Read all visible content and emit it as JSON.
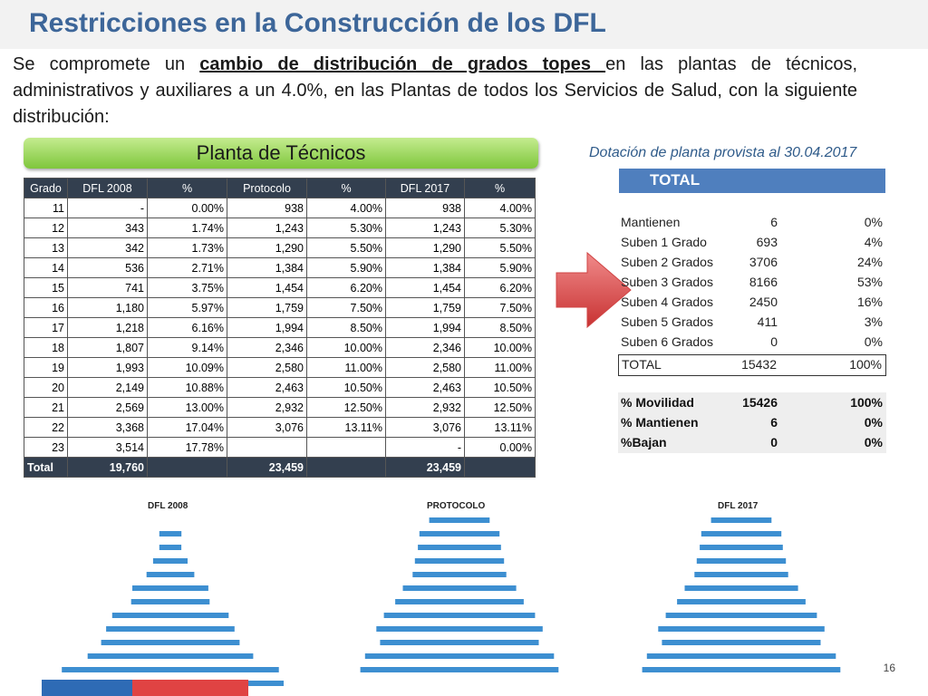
{
  "title": "Restricciones en la Construcción de los DFL",
  "intro": {
    "part1": "Se compromete un ",
    "highlight": "cambio de distribución de grados topes ",
    "part2": "en las plantas de técnicos, administrativos y auxiliares a un 4.0%, en las Plantas de todos los Servicios de Salud, con la siguiente distribución:"
  },
  "planta_label": "Planta de Técnicos",
  "table": {
    "headers": [
      "Grado",
      "DFL 2008",
      "%",
      "Protocolo",
      "%",
      "DFL 2017",
      "%"
    ],
    "rows": [
      [
        "11",
        "-",
        "0.00%",
        "938",
        "4.00%",
        "938",
        "4.00%"
      ],
      [
        "12",
        "343",
        "1.74%",
        "1,243",
        "5.30%",
        "1,243",
        "5.30%"
      ],
      [
        "13",
        "342",
        "1.73%",
        "1,290",
        "5.50%",
        "1,290",
        "5.50%"
      ],
      [
        "14",
        "536",
        "2.71%",
        "1,384",
        "5.90%",
        "1,384",
        "5.90%"
      ],
      [
        "15",
        "741",
        "3.75%",
        "1,454",
        "6.20%",
        "1,454",
        "6.20%"
      ],
      [
        "16",
        "1,180",
        "5.97%",
        "1,759",
        "7.50%",
        "1,759",
        "7.50%"
      ],
      [
        "17",
        "1,218",
        "6.16%",
        "1,994",
        "8.50%",
        "1,994",
        "8.50%"
      ],
      [
        "18",
        "1,807",
        "9.14%",
        "2,346",
        "10.00%",
        "2,346",
        "10.00%"
      ],
      [
        "19",
        "1,993",
        "10.09%",
        "2,580",
        "11.00%",
        "2,580",
        "11.00%"
      ],
      [
        "20",
        "2,149",
        "10.88%",
        "2,463",
        "10.50%",
        "2,463",
        "10.50%"
      ],
      [
        "21",
        "2,569",
        "13.00%",
        "2,932",
        "12.50%",
        "2,932",
        "12.50%"
      ],
      [
        "22",
        "3,368",
        "17.04%",
        "3,076",
        "13.11%",
        "3,076",
        "13.11%"
      ],
      [
        "23",
        "3,514",
        "17.78%",
        "",
        "",
        "-",
        "0.00%"
      ]
    ],
    "total_row": [
      "Total",
      "19,760",
      "",
      "23,459",
      "",
      "23,459",
      ""
    ]
  },
  "dotacion_caption": "Dotación de planta provista al 30.04.2017",
  "total_label": "TOTAL",
  "summary_rows": [
    [
      "Mantienen",
      "6",
      "0%"
    ],
    [
      "Suben 1 Grado",
      "693",
      "4%"
    ],
    [
      "Suben 2 Grados",
      "3706",
      "24%"
    ],
    [
      "Suben 3 Grados",
      "8166",
      "53%"
    ],
    [
      "Suben 4 Grados",
      "2450",
      "16%"
    ],
    [
      "Suben 5 Grados",
      "411",
      "3%"
    ],
    [
      "Suben 6 Grados",
      "0",
      "0%"
    ]
  ],
  "summary_total": [
    "TOTAL",
    "15432",
    "100%"
  ],
  "movilidad_rows": [
    [
      "% Movilidad",
      "15426",
      "100%"
    ],
    [
      "% Mantienen",
      "6",
      "0%"
    ],
    [
      "%Bajan",
      "0",
      "0%"
    ]
  ],
  "pyramids": [
    {
      "title": "DFL 2008",
      "values": [
        0,
        343,
        342,
        536,
        741,
        1180,
        1218,
        1807,
        1993,
        2149,
        2569,
        3368,
        3514
      ]
    },
    {
      "title": "PROTOCOLO",
      "values": [
        938,
        1243,
        1290,
        1384,
        1454,
        1759,
        1994,
        2346,
        2580,
        2463,
        2932,
        3076
      ]
    },
    {
      "title": "DFL 2017",
      "values": [
        938,
        1243,
        1290,
        1384,
        1454,
        1759,
        1994,
        2346,
        2580,
        2463,
        2932,
        3076,
        0
      ]
    }
  ],
  "page_number": "16",
  "colors": {
    "title": "#3d6699",
    "table_header": "#333f4f",
    "bar": "#3d8fd1",
    "total_bar": "#4f7fbe",
    "arrow": "#e05050",
    "planta_button": "#8fd14f"
  }
}
